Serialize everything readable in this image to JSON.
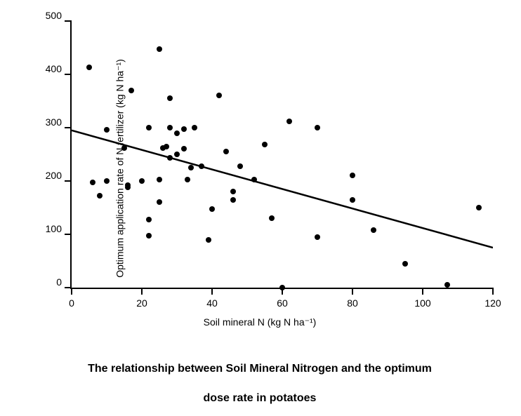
{
  "chart": {
    "type": "scatter",
    "x_label": "Soil mineral N (kg N ha⁻¹)",
    "y_label": "Optimum application rate of N fertilizer (kg N ha⁻¹)",
    "xlim": [
      0,
      120
    ],
    "ylim": [
      0,
      500
    ],
    "x_ticks": [
      0,
      20,
      40,
      60,
      80,
      100,
      120
    ],
    "y_ticks": [
      0,
      100,
      200,
      300,
      400,
      500
    ],
    "background_color": "#ffffff",
    "axis_color": "#000000",
    "tick_fontsize": 14,
    "label_fontsize": 14,
    "marker_color": "#000000",
    "marker_size": 8,
    "trend_line": {
      "x1": 0,
      "y1": 295,
      "x2": 120,
      "y2": 75,
      "color": "#000000",
      "width": 2.5
    },
    "points": [
      [
        5,
        413
      ],
      [
        6,
        198
      ],
      [
        8,
        172
      ],
      [
        10,
        296
      ],
      [
        10,
        200
      ],
      [
        15,
        262
      ],
      [
        16,
        192
      ],
      [
        16,
        188
      ],
      [
        17,
        370
      ],
      [
        20,
        200
      ],
      [
        22,
        300
      ],
      [
        22,
        128
      ],
      [
        22,
        98
      ],
      [
        25,
        160
      ],
      [
        25,
        448
      ],
      [
        25,
        202
      ],
      [
        26,
        262
      ],
      [
        27,
        264
      ],
      [
        28,
        355
      ],
      [
        28,
        244
      ],
      [
        28,
        300
      ],
      [
        30,
        250
      ],
      [
        30,
        290
      ],
      [
        32,
        298
      ],
      [
        32,
        260
      ],
      [
        33,
        202
      ],
      [
        34,
        225
      ],
      [
        35,
        300
      ],
      [
        37,
        228
      ],
      [
        39,
        90
      ],
      [
        40,
        148
      ],
      [
        42,
        360
      ],
      [
        44,
        255
      ],
      [
        46,
        164
      ],
      [
        46,
        180
      ],
      [
        48,
        228
      ],
      [
        52,
        202
      ],
      [
        55,
        268
      ],
      [
        57,
        130
      ],
      [
        60,
        0
      ],
      [
        62,
        312
      ],
      [
        70,
        300
      ],
      [
        70,
        95
      ],
      [
        80,
        210
      ],
      [
        80,
        165
      ],
      [
        86,
        108
      ],
      [
        95,
        45
      ],
      [
        107,
        5
      ],
      [
        116,
        150
      ]
    ]
  },
  "caption_line1": "The relationship between Soil Mineral Nitrogen and the optimum",
  "caption_line2": "dose rate in potatoes"
}
